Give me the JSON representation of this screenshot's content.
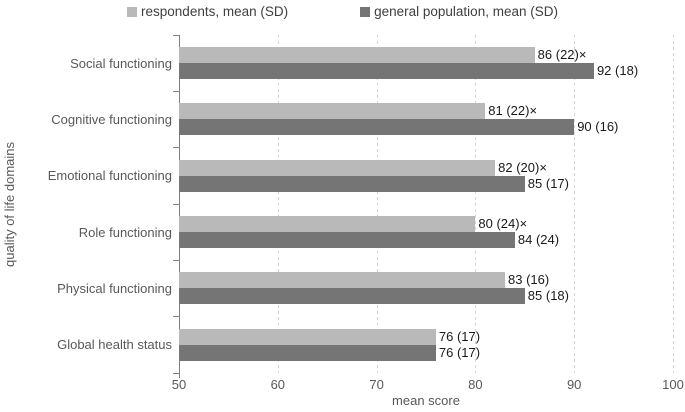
{
  "chart_data": {
    "type": "bar",
    "orientation": "horizontal",
    "title": "",
    "xlabel": "mean score",
    "ylabel": "quality of life domains",
    "xlim": [
      50,
      100
    ],
    "xticks": [
      50,
      60,
      70,
      80,
      90,
      100
    ],
    "grid": true,
    "legend_position": "top",
    "categories": [
      "Social functioning",
      "Cognitive functioning",
      "Emotional functioning",
      "Role functioning",
      "Physical functioning",
      "Global health status"
    ],
    "series": [
      {
        "name": "respondents, mean (SD)",
        "color": "#b9b9b9",
        "values": [
          86,
          81,
          82,
          80,
          83,
          76
        ],
        "sd": [
          22,
          22,
          20,
          24,
          16,
          17
        ],
        "labels": [
          "86 (22)×",
          "81 (22)×",
          "82 (20)×",
          "80 (24)×",
          "83 (16)",
          "76 (17)"
        ]
      },
      {
        "name": "general population, mean (SD)",
        "color": "#757575",
        "values": [
          92,
          90,
          85,
          84,
          85,
          76
        ],
        "sd": [
          18,
          16,
          17,
          24,
          18,
          17
        ],
        "labels": [
          "92 (18)",
          "90 (16)",
          "85 (17)",
          "84 (24)",
          "85 (18)",
          "76 (17)"
        ]
      }
    ],
    "colors": {
      "gridline": "#d6d6d6",
      "axis_line": "#7f7f7f",
      "axis_text": "#595959",
      "value_text": "#1a1a1a"
    }
  }
}
